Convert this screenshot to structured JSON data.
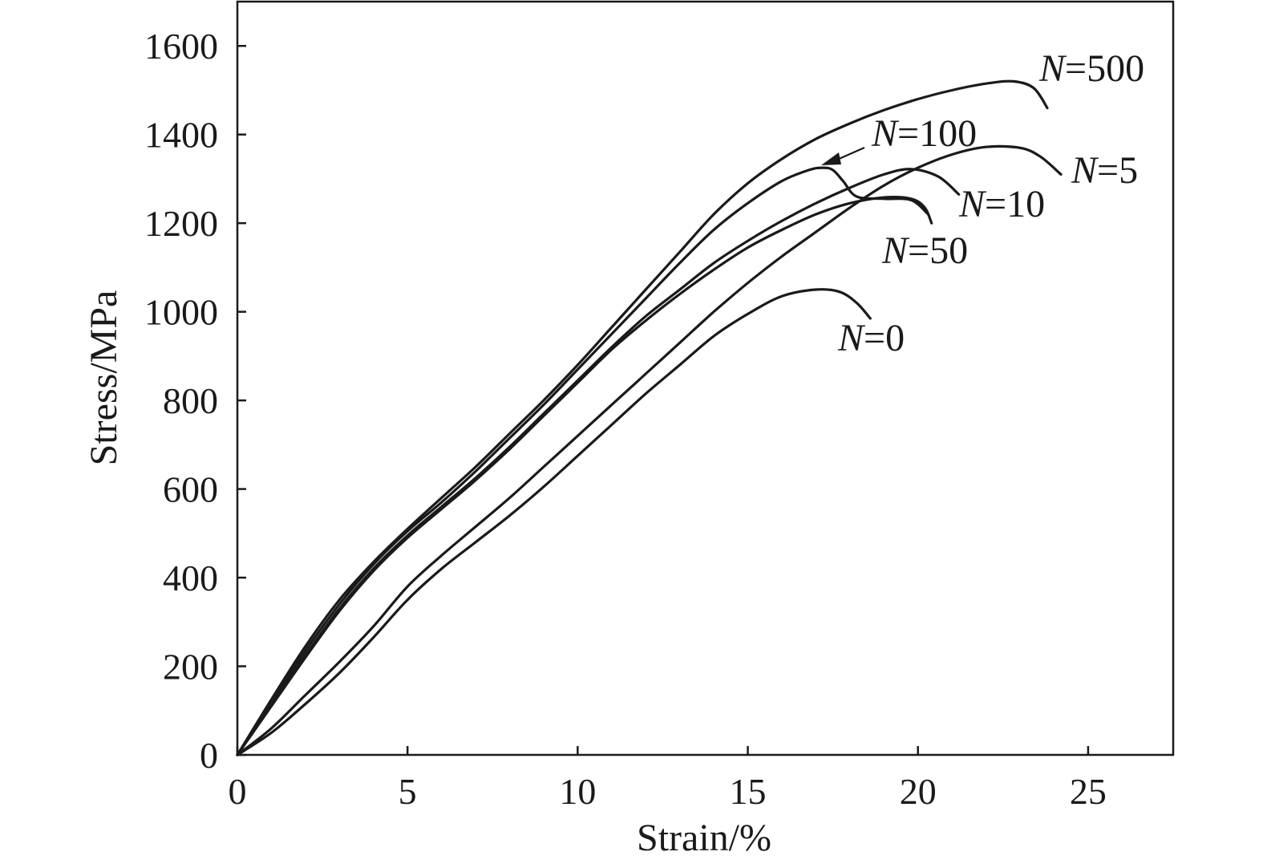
{
  "chart_data": {
    "type": "line",
    "title": "",
    "xlabel": "Strain/%",
    "ylabel": "Stress/MPa",
    "xlim": [
      0,
      27.5
    ],
    "ylim": [
      0,
      1700
    ],
    "xticks": [
      0,
      5,
      10,
      15,
      20,
      25
    ],
    "yticks": [
      0,
      200,
      400,
      600,
      800,
      1000,
      1200,
      1400,
      1600
    ],
    "grid": false,
    "legend": "inline labels next to curve ends",
    "series": [
      {
        "name": "N=0",
        "label_prefix": "N",
        "label_suffix": "=0",
        "x": [
          0,
          1,
          2,
          3,
          4,
          5,
          6,
          7,
          8,
          9,
          10,
          11,
          12,
          13,
          14,
          15,
          16,
          17,
          17.7,
          18.2,
          18.6
        ],
        "y": [
          0,
          50,
          115,
          185,
          265,
          350,
          420,
          480,
          540,
          605,
          675,
          745,
          815,
          880,
          945,
          995,
          1035,
          1050,
          1045,
          1020,
          985
        ]
      },
      {
        "name": "N=5",
        "label_prefix": "N",
        "label_suffix": "=5",
        "x": [
          0,
          1,
          2,
          3,
          4,
          5,
          6,
          7,
          8,
          9,
          10,
          11,
          12,
          13,
          14,
          15,
          16,
          17,
          18,
          19,
          20,
          21,
          22,
          23,
          23.6,
          24.2
        ],
        "y": [
          0,
          60,
          135,
          210,
          290,
          380,
          450,
          515,
          580,
          650,
          720,
          790,
          860,
          930,
          1000,
          1065,
          1125,
          1180,
          1235,
          1285,
          1325,
          1355,
          1372,
          1370,
          1350,
          1310
        ]
      },
      {
        "name": "N=10",
        "label_prefix": "N",
        "label_suffix": "=10",
        "x": [
          0,
          1,
          2,
          3,
          4,
          5,
          6,
          7,
          8,
          9,
          10,
          11,
          12,
          13,
          14,
          15,
          16,
          17,
          18,
          19,
          19.8,
          20.6,
          21.2
        ],
        "y": [
          0,
          115,
          225,
          330,
          420,
          495,
          560,
          625,
          695,
          770,
          845,
          920,
          990,
          1050,
          1110,
          1160,
          1205,
          1245,
          1280,
          1310,
          1322,
          1305,
          1265
        ]
      },
      {
        "name": "N=50",
        "label_prefix": "N",
        "label_suffix": "=50",
        "x": [
          0,
          1,
          2,
          3,
          4,
          5,
          6,
          7,
          8,
          9,
          10,
          11,
          12,
          13,
          14,
          15,
          16,
          17,
          18,
          19,
          19.8,
          20.2,
          20.4
        ],
        "y": [
          0,
          110,
          220,
          325,
          415,
          490,
          555,
          620,
          690,
          765,
          840,
          915,
          980,
          1040,
          1095,
          1145,
          1185,
          1220,
          1245,
          1258,
          1255,
          1235,
          1200
        ]
      },
      {
        "name": "N=100",
        "label_prefix": "N",
        "label_suffix": "=100",
        "x": [
          0,
          1,
          2,
          3,
          4,
          5,
          6,
          7,
          8,
          9,
          10,
          11,
          12,
          13,
          14,
          15,
          16,
          16.8,
          17.2,
          17.5,
          17.8,
          18.2,
          19,
          19.8,
          20.3
        ],
        "y": [
          0,
          120,
          235,
          340,
          430,
          505,
          570,
          640,
          715,
          790,
          870,
          950,
          1030,
          1110,
          1185,
          1245,
          1295,
          1320,
          1325,
          1320,
          1295,
          1260,
          1255,
          1252,
          1220
        ]
      },
      {
        "name": "N=500",
        "label_prefix": "N",
        "label_suffix": "=500",
        "x": [
          0,
          1,
          2,
          3,
          4,
          5,
          6,
          7,
          8,
          9,
          10,
          11,
          12,
          13,
          14,
          15,
          16,
          17,
          18,
          19,
          20,
          21,
          22,
          22.8,
          23.4,
          23.8
        ],
        "y": [
          0,
          125,
          245,
          350,
          435,
          510,
          580,
          650,
          725,
          800,
          880,
          965,
          1050,
          1135,
          1220,
          1290,
          1345,
          1390,
          1425,
          1455,
          1480,
          1500,
          1515,
          1520,
          1505,
          1460
        ]
      }
    ],
    "annotation": {
      "text_prefix": "N",
      "text_suffix": "=100",
      "points_to_series": "N=100"
    }
  }
}
